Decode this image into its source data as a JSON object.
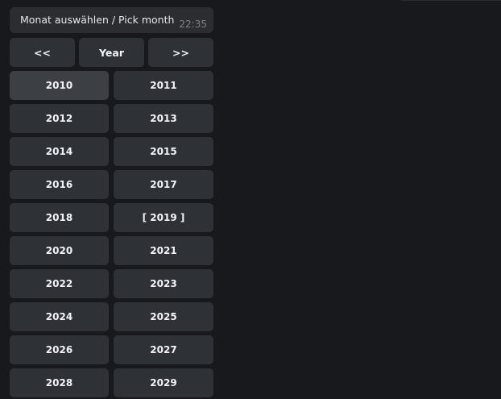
{
  "message": {
    "text": "Monat auswählen / Pick month",
    "time": "22:35"
  },
  "nav": {
    "prev": "<<",
    "title": "Year",
    "next": ">>"
  },
  "years": [
    "2010",
    "2011",
    "2012",
    "2013",
    "2014",
    "2015",
    "2016",
    "2017",
    "2018",
    "[ 2019 ]",
    "2020",
    "2021",
    "2022",
    "2023",
    "2024",
    "2025",
    "2026",
    "2027",
    "2028",
    "2029"
  ],
  "colors": {
    "background": "#17191c",
    "button": "#2e3136",
    "button_hover": "#3c3f44",
    "bubble": "#2b2d31"
  }
}
